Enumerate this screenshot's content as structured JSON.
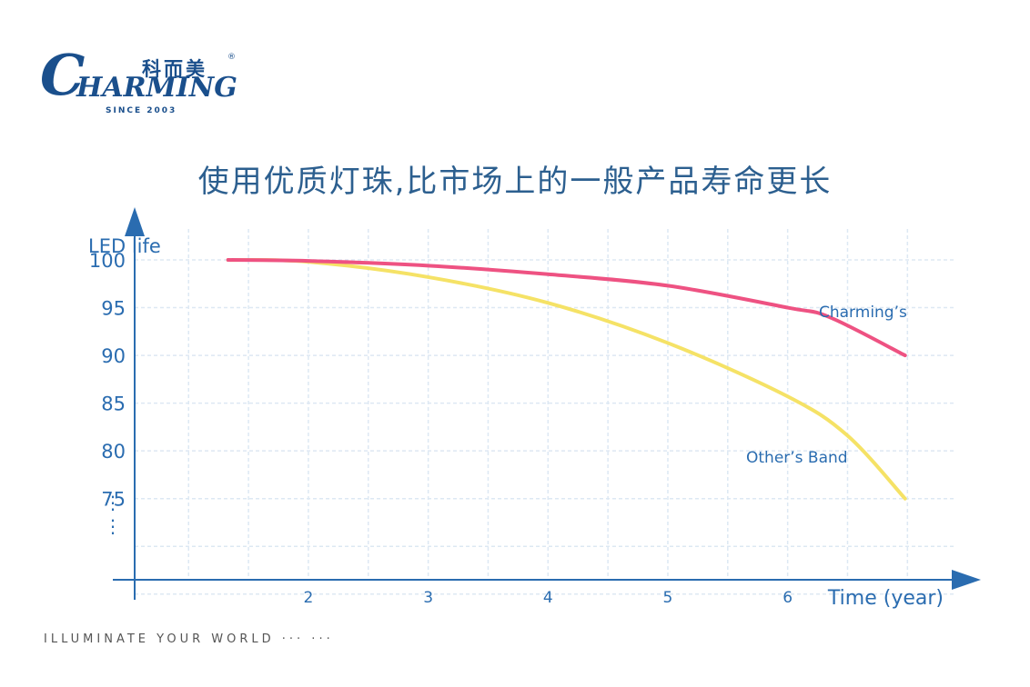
{
  "logo": {
    "cn": "科而美",
    "mark": "®",
    "initial": "C",
    "word": "HARMING",
    "since": "SINCE 2003"
  },
  "headline": "使用优质灯珠,比市场上的一般产品寿命更长",
  "footer": "ILLUMINATE YOUR WORLD  ··· ···",
  "colors": {
    "charming": "#ee5282",
    "others": "#f5e266",
    "axis": "#2a6cb0",
    "grid": "#dde8f3"
  },
  "chart_data": {
    "type": "line",
    "xlabel": "Time (year)",
    "ylabel": "LED life",
    "x_ticks": [
      2,
      3,
      4,
      5,
      6
    ],
    "y_ticks": [
      100,
      95,
      90,
      85,
      80,
      75
    ],
    "y_ellipsis": "⋮",
    "xlim": [
      0.55,
      7.4
    ],
    "ylim": [
      66.5,
      104
    ],
    "grid": true,
    "series": [
      {
        "name": "Charming’s",
        "x": [
          1.33,
          2,
          3,
          4,
          5,
          6,
          6.35,
          6.98
        ],
        "y": [
          100,
          99.9,
          99.4,
          98.5,
          97.3,
          95.0,
          94.0,
          90.0
        ]
      },
      {
        "name": "Other’s Band",
        "x": [
          1.33,
          2,
          3,
          4,
          5,
          6,
          6.5,
          6.98
        ],
        "y": [
          100,
          99.8,
          98.2,
          95.5,
          91.3,
          85.7,
          81.6,
          75.0
        ]
      }
    ]
  }
}
